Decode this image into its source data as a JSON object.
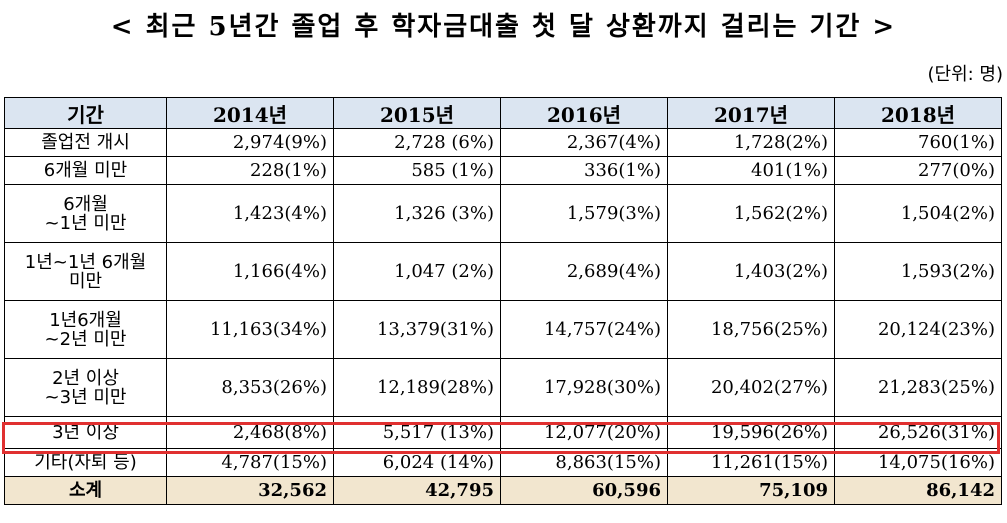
{
  "title": "< 최근 5년간 졸업 후 학자금대출 첫 달 상환까지 걸리는 기간 >",
  "unit": "(단위: 명)",
  "table": {
    "headers": [
      "기간",
      "2014년",
      "2015년",
      "2016년",
      "2017년",
      "2018년"
    ],
    "rows": [
      {
        "label": "졸업전 개시",
        "values": [
          "2,974(9%)",
          "2,728 (6%)",
          "2,367(4%)",
          "1,728(2%)",
          "760(1%)"
        ]
      },
      {
        "label": "6개월 미만",
        "values": [
          "228(1%)",
          "585 (1%)",
          "336(1%)",
          "401(1%)",
          "277(0%)"
        ]
      },
      {
        "label": "6개월\n~1년 미만",
        "values": [
          "1,423(4%)",
          "1,326 (3%)",
          "1,579(3%)",
          "1,562(2%)",
          "1,504(2%)"
        ]
      },
      {
        "label": "1년~1년 6개월\n미만",
        "values": [
          "1,166(4%)",
          "1,047 (2%)",
          "2,689(4%)",
          "1,403(2%)",
          "1,593(2%)"
        ]
      },
      {
        "label": "1년6개월\n~2년 미만",
        "values": [
          "11,163(34%)",
          "13,379(31%)",
          "14,757(24%)",
          "18,756(25%)",
          "20,124(23%)"
        ]
      },
      {
        "label": "2년 이상\n~3년 미만",
        "values": [
          "8,353(26%)",
          "12,189(28%)",
          "17,928(30%)",
          "20,402(27%)",
          "21,283(25%)"
        ]
      },
      {
        "label": "3년 이상",
        "values": [
          "2,468(8%)",
          "5,517 (13%)",
          "12,077(20%)",
          "19,596(26%)",
          "26,526(31%)"
        ]
      },
      {
        "label": "기타(자퇴 등)",
        "values": [
          "4,787(15%)",
          "6,024 (14%)",
          "8,863(15%)",
          "11,261(15%)",
          "14,075(16%)"
        ]
      }
    ],
    "total": {
      "label": "소계",
      "values": [
        "32,562",
        "42,795",
        "60,596",
        "75,109",
        "86,142"
      ]
    }
  },
  "colors": {
    "header_bg": "#dbe5f1",
    "total_bg": "#f2e6cf",
    "highlight_border": "#e03030"
  }
}
